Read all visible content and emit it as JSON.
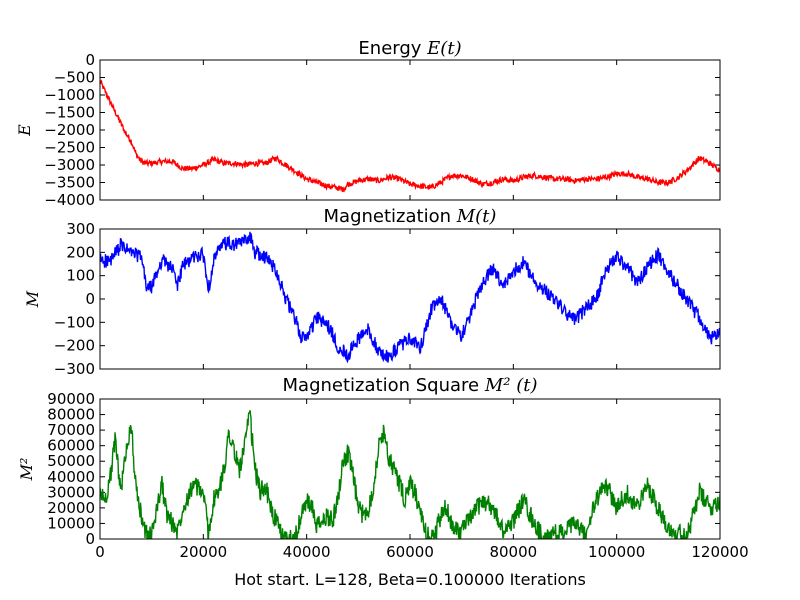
{
  "chart_data": [
    {
      "type": "line",
      "title_text": "Energy",
      "title_math": "E(t)",
      "ylabel": "E",
      "xlabel": "",
      "xlim": [
        0,
        120000
      ],
      "ylim": [
        -4000,
        0
      ],
      "yticks": [
        0,
        -500,
        -1000,
        -1500,
        -2000,
        -2500,
        -3000,
        -3500,
        -4000
      ],
      "color": "#ff0000",
      "series": [
        {
          "x": [
            0,
            1000,
            2000,
            3000,
            4000,
            5000,
            6000,
            7000,
            8000,
            9000,
            10000,
            12000,
            14000,
            16000,
            18000,
            20000,
            22000,
            24000,
            26000,
            28000,
            30000,
            32000,
            34000,
            36000,
            38000,
            40000,
            42000,
            44000,
            46000,
            47000,
            48000,
            50000,
            52000,
            54000,
            56000,
            58000,
            60000,
            62000,
            64000,
            66000,
            68000,
            70000,
            72000,
            74000,
            76000,
            78000,
            80000,
            82000,
            84000,
            86000,
            88000,
            90000,
            92000,
            94000,
            96000,
            98000,
            100000,
            102000,
            104000,
            106000,
            108000,
            110000,
            112000,
            114000,
            116000,
            118000,
            120000
          ],
          "y": [
            -600,
            -900,
            -1200,
            -1500,
            -1800,
            -2100,
            -2300,
            -2700,
            -2900,
            -2950,
            -2950,
            -2900,
            -2900,
            -3100,
            -3100,
            -3000,
            -2850,
            -2950,
            -2950,
            -3000,
            -2950,
            -2950,
            -2800,
            -3000,
            -3200,
            -3400,
            -3500,
            -3600,
            -3650,
            -3700,
            -3550,
            -3450,
            -3400,
            -3450,
            -3350,
            -3400,
            -3550,
            -3600,
            -3650,
            -3500,
            -3300,
            -3300,
            -3400,
            -3550,
            -3500,
            -3400,
            -3450,
            -3350,
            -3300,
            -3350,
            -3400,
            -3400,
            -3450,
            -3400,
            -3400,
            -3350,
            -3250,
            -3250,
            -3350,
            -3400,
            -3500,
            -3500,
            -3350,
            -3100,
            -2800,
            -2950,
            -3150
          ]
        }
      ]
    },
    {
      "type": "line",
      "title_text": "Magnetization",
      "title_math": "M(t)",
      "ylabel": "M",
      "xlabel": "",
      "xlim": [
        0,
        120000
      ],
      "ylim": [
        -300,
        300
      ],
      "yticks": [
        300,
        200,
        100,
        0,
        -100,
        -200,
        -300
      ],
      "color": "#0000ff",
      "series": [
        {
          "x": [
            0,
            2000,
            4000,
            6000,
            8000,
            9000,
            10000,
            12000,
            14000,
            15000,
            16000,
            18000,
            20000,
            21000,
            22000,
            24000,
            26000,
            28000,
            29000,
            30000,
            32000,
            34000,
            36000,
            38000,
            39000,
            40000,
            42000,
            44000,
            46000,
            48000,
            50000,
            52000,
            54000,
            56000,
            58000,
            60000,
            62000,
            64000,
            66000,
            68000,
            70000,
            72000,
            74000,
            76000,
            78000,
            80000,
            82000,
            84000,
            86000,
            88000,
            90000,
            92000,
            94000,
            96000,
            98000,
            100000,
            102000,
            104000,
            106000,
            108000,
            110000,
            112000,
            114000,
            116000,
            118000,
            120000
          ],
          "y": [
            170,
            160,
            230,
            200,
            180,
            50,
            50,
            170,
            130,
            60,
            140,
            180,
            190,
            40,
            170,
            240,
            230,
            250,
            270,
            200,
            180,
            130,
            0,
            -100,
            -170,
            -160,
            -80,
            -110,
            -200,
            -240,
            -170,
            -130,
            -230,
            -250,
            -200,
            -170,
            -210,
            -50,
            0,
            -100,
            -160,
            -50,
            70,
            130,
            50,
            120,
            160,
            80,
            40,
            0,
            -60,
            -90,
            -40,
            0,
            130,
            180,
            140,
            70,
            140,
            190,
            110,
            50,
            -20,
            -80,
            -170,
            -150
          ]
        }
      ]
    },
    {
      "type": "line",
      "title_text": "Magnetization Square",
      "title_math": "M² (t)",
      "ylabel": "M²",
      "xlabel": "Hot start. L=128, Beta=0.100000 Iterations",
      "xlim": [
        0,
        120000
      ],
      "ylim": [
        0,
        90000
      ],
      "yticks": [
        90000,
        80000,
        70000,
        60000,
        50000,
        40000,
        30000,
        20000,
        10000,
        0
      ],
      "xticks": [
        0,
        20000,
        40000,
        60000,
        80000,
        100000,
        120000
      ],
      "color": "#008000",
      "series": [
        {
          "x": [
            0,
            1000,
            2000,
            3000,
            4000,
            5000,
            6000,
            7000,
            8000,
            9000,
            10000,
            11000,
            12000,
            13000,
            14000,
            15000,
            16000,
            18000,
            20000,
            21000,
            22000,
            23000,
            24000,
            25000,
            26000,
            27000,
            28000,
            29000,
            30000,
            31000,
            32000,
            33000,
            34000,
            35000,
            36000,
            38000,
            39000,
            40000,
            41000,
            42000,
            43000,
            44000,
            45000,
            46000,
            47000,
            48000,
            49000,
            50000,
            51000,
            52000,
            53000,
            54000,
            55000,
            56000,
            57000,
            58000,
            59000,
            60000,
            61000,
            62000,
            63000,
            64000,
            65000,
            66000,
            67000,
            68000,
            70000,
            72000,
            74000,
            76000,
            78000,
            80000,
            82000,
            84000,
            86000,
            88000,
            90000,
            92000,
            94000,
            96000,
            98000,
            100000,
            102000,
            104000,
            106000,
            108000,
            110000,
            112000,
            114000,
            116000,
            118000,
            120000
          ],
          "y": [
            30000,
            25000,
            40000,
            65000,
            30000,
            55000,
            75000,
            30000,
            15000,
            3000,
            2000,
            20000,
            35000,
            15000,
            10000,
            5000,
            20000,
            35000,
            30000,
            3000,
            25000,
            30000,
            45000,
            70000,
            55000,
            45000,
            60000,
            80000,
            45000,
            30000,
            35000,
            20000,
            12000,
            3000,
            0,
            3000,
            15000,
            25000,
            20000,
            8000,
            10000,
            15000,
            12000,
            25000,
            50000,
            55000,
            40000,
            20000,
            15000,
            20000,
            35000,
            60000,
            70000,
            50000,
            45000,
            35000,
            25000,
            35000,
            30000,
            15000,
            5000,
            0,
            5000,
            15000,
            20000,
            10000,
            5000,
            15000,
            25000,
            20000,
            5000,
            12000,
            25000,
            10000,
            0,
            3000,
            5000,
            10000,
            2000,
            25000,
            35000,
            20000,
            30000,
            20000,
            35000,
            20000,
            8000,
            3000,
            5000,
            30000,
            20000,
            25000
          ]
        }
      ]
    }
  ]
}
